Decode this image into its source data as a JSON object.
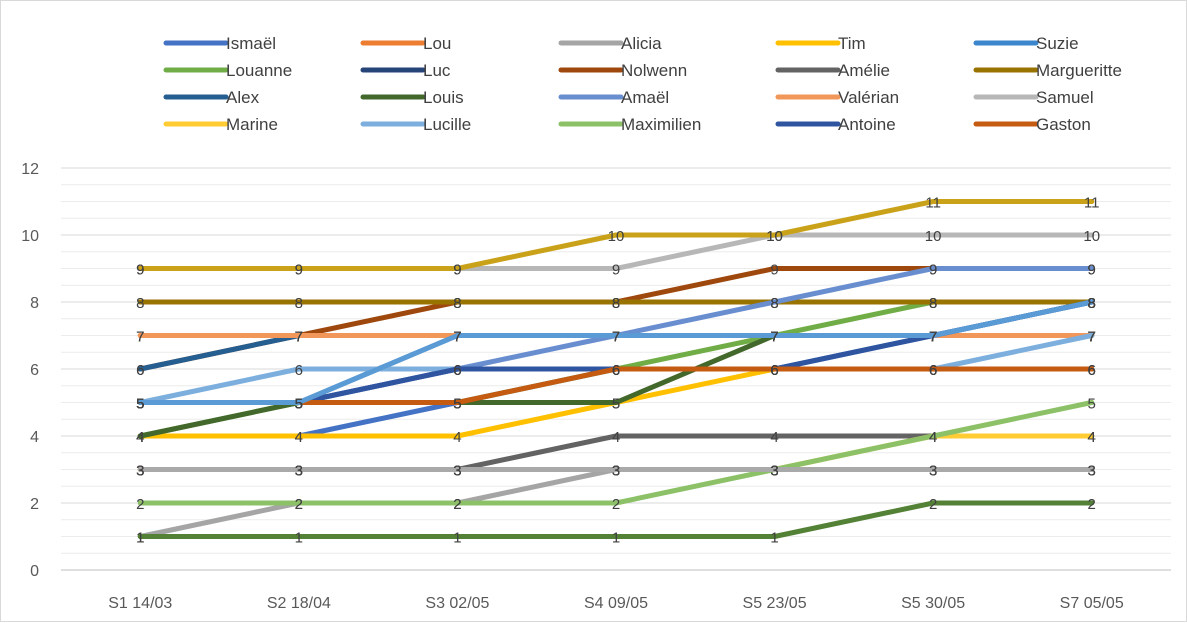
{
  "chart_data": {
    "type": "line",
    "title": "",
    "xlabel": "",
    "ylabel": "",
    "categories": [
      "S1 14/03",
      "S2 18/04",
      "S3 02/05",
      "S4 09/05",
      "S5 23/05",
      "S5 30/05",
      "S7 05/05"
    ],
    "ylim": [
      0,
      12
    ],
    "yticks": [
      0,
      2,
      4,
      6,
      8,
      10,
      12
    ],
    "grid": true,
    "legend": "top",
    "data_labels": true,
    "series": [
      {
        "name": "Ismaël",
        "color": "#4472c4",
        "values": [
          4,
          4,
          5,
          6,
          6,
          7,
          8
        ]
      },
      {
        "name": "Lou",
        "color": "#ed7d31",
        "values": [
          7,
          7,
          7,
          7,
          7,
          7,
          7
        ]
      },
      {
        "name": "Alicia",
        "color": "#a5a5a5",
        "values": [
          1,
          2,
          2,
          3,
          3,
          3,
          3
        ]
      },
      {
        "name": "Tim",
        "color": "#ffc000",
        "values": [
          4,
          4,
          4,
          5,
          6,
          6,
          6
        ]
      },
      {
        "name": "Suzie",
        "color": "#3b86cc",
        "values": [
          5,
          5,
          7,
          7,
          7,
          7,
          8
        ]
      },
      {
        "name": "Louanne",
        "color": "#70ad47",
        "values": [
          4,
          5,
          5,
          6,
          7,
          8,
          8
        ]
      },
      {
        "name": "Luc",
        "color": "#264478",
        "values": [
          5,
          5,
          6,
          6,
          6,
          6,
          6
        ]
      },
      {
        "name": "Nolwenn",
        "color": "#9e480e",
        "values": [
          6,
          7,
          8,
          8,
          9,
          9,
          9
        ]
      },
      {
        "name": "Amélie",
        "color": "#636363",
        "values": [
          3,
          3,
          3,
          4,
          4,
          4,
          4
        ]
      },
      {
        "name": "Margueritte",
        "color": "#997300",
        "values": [
          8,
          8,
          8,
          8,
          8,
          8,
          8
        ]
      },
      {
        "name": "Alex",
        "color": "#255e91",
        "values": [
          6,
          7,
          7,
          7,
          7,
          7,
          7
        ]
      },
      {
        "name": "Louis",
        "color": "#43682b",
        "values": [
          4,
          5,
          5,
          5,
          7,
          7,
          7
        ]
      },
      {
        "name": "Amaël",
        "color": "#698ed0",
        "values": [
          5,
          5,
          6,
          7,
          8,
          9,
          9
        ]
      },
      {
        "name": "Valérian",
        "color": "#f1975a",
        "values": [
          7,
          7,
          7,
          7,
          7,
          7,
          7
        ]
      },
      {
        "name": "Samuel",
        "color": "#b7b7b7",
        "values": [
          9,
          9,
          9,
          9,
          10,
          10,
          10
        ]
      },
      {
        "name": "Marine",
        "color": "#ffcd33",
        "values": [
          3,
          3,
          3,
          3,
          3,
          4,
          4
        ]
      },
      {
        "name": "Lucille",
        "color": "#7cafdd",
        "values": [
          5,
          6,
          6,
          6,
          6,
          6,
          7
        ]
      },
      {
        "name": "Maximilien",
        "color": "#8cc168",
        "values": [
          2,
          2,
          2,
          2,
          3,
          4,
          5
        ]
      },
      {
        "name": "Antoine",
        "color": "#2f55a0",
        "values": [
          5,
          5,
          6,
          6,
          6,
          7,
          8
        ]
      },
      {
        "name": "Gaston",
        "color": "#c55a11",
        "values": [
          5,
          5,
          5,
          6,
          6,
          6,
          6
        ]
      },
      {
        "name": "",
        "color": "#c9a21a",
        "values": [
          9,
          9,
          9,
          10,
          10,
          11,
          11
        ]
      },
      {
        "name": "",
        "color": "#a9a9a9",
        "values": [
          3,
          3,
          3,
          3,
          3,
          3,
          3
        ]
      },
      {
        "name": "",
        "color": "#538135",
        "values": [
          1,
          1,
          1,
          1,
          1,
          2,
          2
        ]
      },
      {
        "name": "",
        "color": "#5b9bd5",
        "values": [
          5,
          5,
          7,
          7,
          7,
          7,
          8
        ]
      }
    ]
  }
}
